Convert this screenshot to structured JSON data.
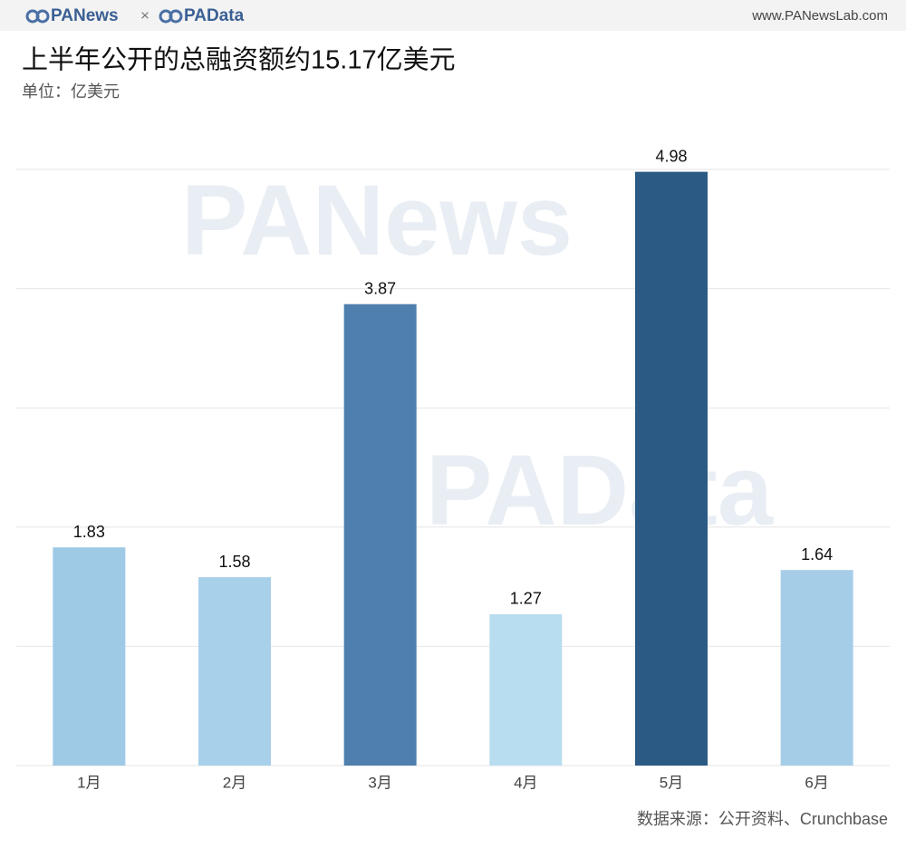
{
  "header": {
    "brands": [
      "PANews",
      "PAData"
    ],
    "separator": "×",
    "url": "www.PANewsLab.com"
  },
  "watermarks": [
    "PANews",
    "PAData"
  ],
  "chart_data": {
    "type": "bar",
    "title": "上半年公开的总融资额约15.17亿美元",
    "subtitle": "单位：亿美元",
    "categories": [
      "1月",
      "2月",
      "3月",
      "4月",
      "5月",
      "6月"
    ],
    "values": [
      1.83,
      1.58,
      3.87,
      1.27,
      4.98,
      1.64
    ],
    "colors": [
      "#9ecae6",
      "#a9d0ea",
      "#4e7fae",
      "#b9ddf0",
      "#2b5a84",
      "#a6cde8"
    ],
    "ylim": [
      0,
      5
    ],
    "yticks": [
      0,
      1,
      2,
      3,
      4,
      5
    ],
    "grid": true,
    "source": "数据来源：公开资料、Crunchbase"
  }
}
